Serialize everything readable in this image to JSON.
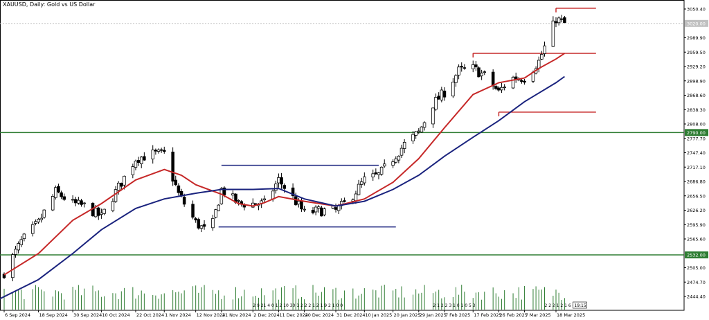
{
  "chart_data": {
    "type": "candlestick",
    "title": "XAUUSD, Daily:  Gold vs US Dollar",
    "symbol": "XAUUSD",
    "timeframe": "Daily",
    "description": "Gold vs US Dollar",
    "ylim": [
      2424,
      3066
    ],
    "yticks": [
      3050.4,
      2989.9,
      2959.5,
      2929.2,
      2898.9,
      2868.6,
      2838.3,
      2808.0,
      2777.7,
      2747.4,
      2717.1,
      2686.8,
      2656.5,
      2626.2,
      2595.9,
      2565.6,
      2505.0,
      2474.7,
      2444.4
    ],
    "ytick_labels": [
      "3050.40",
      "2989.90",
      "2959.50",
      "2929.20",
      "2898.90",
      "2868.60",
      "2838.30",
      "2808.00",
      "2777.70",
      "2747.40",
      "2717.10",
      "2686.80",
      "2656.50",
      "2626.20",
      "2595.90",
      "2565.60",
      "2505.00",
      "2474.70",
      "2444.40"
    ],
    "price_label": "3020.00",
    "price_value": 3020.0,
    "x_dates": [
      "6 Sep 2024",
      "18 Sep 2024",
      "30 Sep 2024",
      "10 Oct 2024",
      "22 Oct 2024",
      "1 Nov 2024",
      "12 Nov 2024",
      "21 Nov 2024",
      "2 Dec 2024",
      "11 Dec 2024",
      "20 Dec 2024",
      "31 Dec 2024",
      "10 Jan 2025",
      "20 Jan 2025",
      "29 Jan 2025",
      "7 Feb 2025",
      "17 Feb 2025",
      "26 Feb 2025",
      "7 Mar 2025",
      "18 Mar 2025"
    ],
    "close_points": [
      [
        "6 Sep 2024",
        2495
      ],
      [
        "12 Sep 2024",
        2560
      ],
      [
        "18 Sep 2024",
        2600
      ],
      [
        "24 Sep 2024",
        2665
      ],
      [
        "30 Sep 2024",
        2640
      ],
      [
        "4 Oct 2024",
        2635
      ],
      [
        "10 Oct 2024",
        2612
      ],
      [
        "16 Oct 2024",
        2675
      ],
      [
        "22 Oct 2024",
        2735
      ],
      [
        "28 Oct 2024",
        2745
      ],
      [
        "1 Nov 2024",
        2745
      ],
      [
        "6 Nov 2024",
        2660
      ],
      [
        "12 Nov 2024",
        2600
      ],
      [
        "17 Nov 2024",
        2575
      ],
      [
        "21 Nov 2024",
        2670
      ],
      [
        "27 Nov 2024",
        2640
      ],
      [
        "2 Dec 2024",
        2640
      ],
      [
        "6 Dec 2024",
        2640
      ],
      [
        "11 Dec 2024",
        2690
      ],
      [
        "15 Dec 2024",
        2660
      ],
      [
        "20 Dec 2024",
        2620
      ],
      [
        "25 Dec 2024",
        2625
      ],
      [
        "31 Dec 2024",
        2625
      ],
      [
        "5 Jan 2025",
        2650
      ],
      [
        "10 Jan 2025",
        2690
      ],
      [
        "15 Jan 2025",
        2700
      ],
      [
        "20 Jan 2025",
        2735
      ],
      [
        "24 Jan 2025",
        2765
      ],
      [
        "29 Jan 2025",
        2790
      ],
      [
        "3 Feb 2025",
        2850
      ],
      [
        "7 Feb 2025",
        2875
      ],
      [
        "12 Feb 2025",
        2920
      ],
      [
        "17 Feb 2025",
        2925
      ],
      [
        "21 Feb 2025",
        2910
      ],
      [
        "26 Feb 2025",
        2875
      ],
      [
        "2 Mar 2025",
        2905
      ],
      [
        "7 Mar 2025",
        2905
      ],
      [
        "12 Mar 2025",
        2940
      ],
      [
        "18 Mar 2025",
        3030
      ],
      [
        "21 Mar 2025",
        3020
      ]
    ],
    "ma20_points": [
      [
        "6 Sep 2024",
        2490
      ],
      [
        "18 Sep 2024",
        2535
      ],
      [
        "30 Sep 2024",
        2605
      ],
      [
        "10 Oct 2024",
        2640
      ],
      [
        "22 Oct 2024",
        2690
      ],
      [
        "1 Nov 2024",
        2712
      ],
      [
        "7 Nov 2024",
        2700
      ],
      [
        "12 Nov 2024",
        2680
      ],
      [
        "21 Nov 2024",
        2660
      ],
      [
        "27 Nov 2024",
        2640
      ],
      [
        "2 Dec 2024",
        2635
      ],
      [
        "6 Dec 2024",
        2642
      ],
      [
        "11 Dec 2024",
        2655
      ],
      [
        "20 Dec 2024",
        2645
      ],
      [
        "31 Dec 2024",
        2635
      ],
      [
        "10 Jan 2025",
        2650
      ],
      [
        "20 Jan 2025",
        2685
      ],
      [
        "29 Jan 2025",
        2735
      ],
      [
        "7 Feb 2025",
        2800
      ],
      [
        "17 Feb 2025",
        2870
      ],
      [
        "26 Feb 2025",
        2895
      ],
      [
        "7 Mar 2025",
        2905
      ],
      [
        "12 Mar 2025",
        2925
      ],
      [
        "18 Mar 2025",
        2945
      ],
      [
        "21 Mar 2025",
        2957
      ]
    ],
    "ma50_points": [
      [
        "2 Sep 2024",
        2432
      ],
      [
        "18 Sep 2024",
        2480
      ],
      [
        "30 Sep 2024",
        2535
      ],
      [
        "10 Oct 2024",
        2585
      ],
      [
        "22 Oct 2024",
        2630
      ],
      [
        "1 Nov 2024",
        2650
      ],
      [
        "12 Nov 2024",
        2662
      ],
      [
        "21 Nov 2024",
        2670
      ],
      [
        "2 Dec 2024",
        2670
      ],
      [
        "11 Dec 2024",
        2672
      ],
      [
        "20 Dec 2024",
        2650
      ],
      [
        "31 Dec 2024",
        2635
      ],
      [
        "10 Jan 2025",
        2645
      ],
      [
        "20 Jan 2025",
        2670
      ],
      [
        "29 Jan 2025",
        2700
      ],
      [
        "7 Feb 2025",
        2740
      ],
      [
        "17 Feb 2025",
        2780
      ],
      [
        "26 Feb 2025",
        2815
      ],
      [
        "7 Mar 2025",
        2855
      ],
      [
        "18 Mar 2025",
        2895
      ],
      [
        "21 Mar 2025",
        2908
      ]
    ],
    "horizontal_levels": [
      {
        "value": 2790.0,
        "label": "2790.00",
        "color": "#2e7d32"
      },
      {
        "value": 2532.0,
        "label": "2532.00",
        "color": "#2e7d32"
      }
    ],
    "resistance_lines": [
      {
        "from": "18 Mar 2025",
        "to": "1 Apr 2025",
        "value": 3052,
        "color": "#c62828"
      },
      {
        "from": "17 Feb 2025",
        "to": "1 Apr 2025",
        "value": 2957,
        "color": "#c62828"
      },
      {
        "from": "26 Feb 2025",
        "to": "1 Apr 2025",
        "value": 2833,
        "color": "#c62828"
      }
    ],
    "range_box": {
      "top": 2721,
      "bottom": 2591,
      "top_from": "21 Nov 2024",
      "top_to": "15 Jan 2025",
      "bottom_from": "20 Nov 2024",
      "bottom_to": "21 Jan 2025",
      "color": "#1a237e"
    },
    "volume_labels": [
      {
        "date": "2 Dec 2024",
        "text": "2 9 21 4 0 1 2 10 30 1 2 2 2 1 2 1 9 2 1 0 0"
      },
      {
        "date": "3 Feb 2025",
        "text": "2 1 2 2 3 1 0 1 0 5 3"
      },
      {
        "date": "14 Mar 2025",
        "text": "2 2 2 1 2 1 6 0 5"
      }
    ],
    "time_label": "19:15",
    "colors": {
      "candle": "#000000",
      "ma20": "#c62828",
      "ma50": "#1a237e",
      "volume": "#2e7d32",
      "level": "#2e7d32",
      "resistance": "#c62828",
      "box": "#1a237e"
    }
  }
}
